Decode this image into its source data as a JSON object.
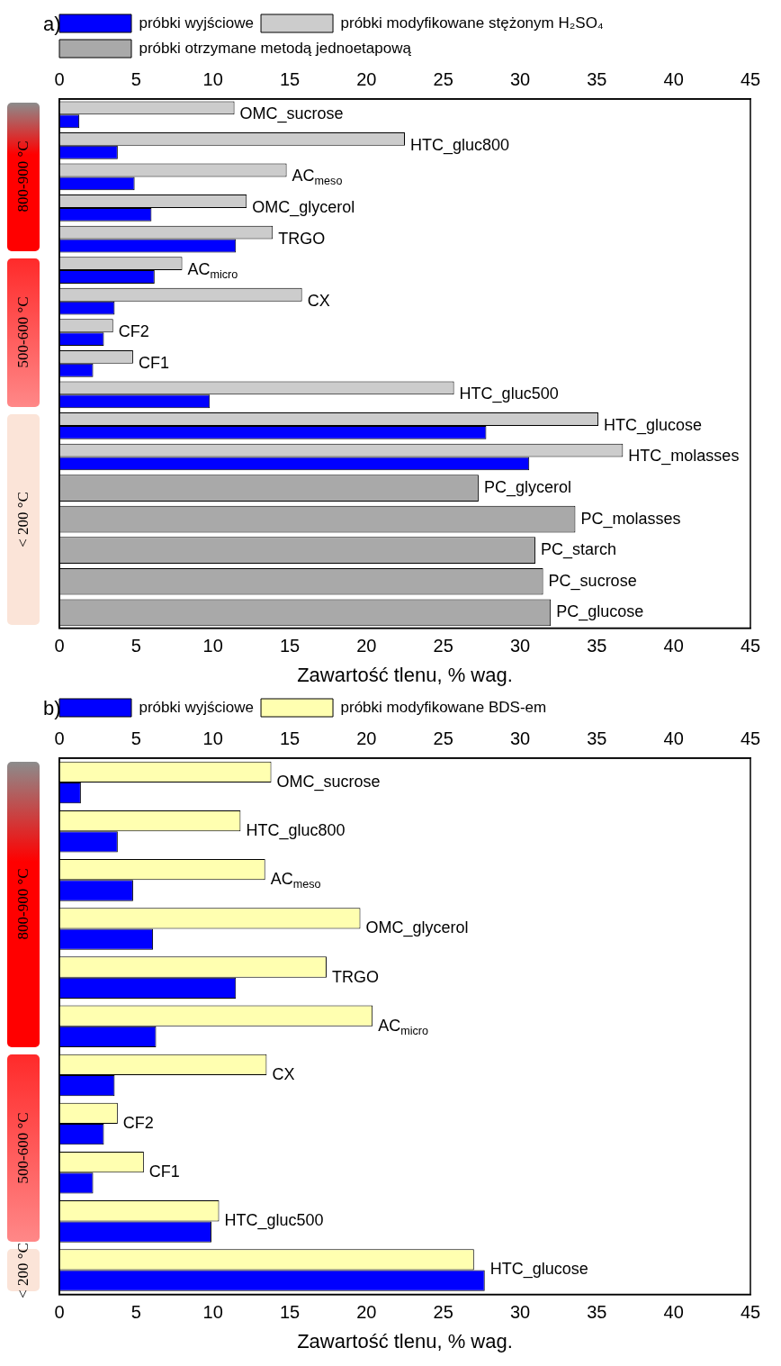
{
  "chart_data": [
    {
      "type": "bar",
      "orientation": "horizontal",
      "xlabel": "Zawartość tlenu, % wag.",
      "legend": "top",
      "tick_labels": "x",
      "annotations": [
        "a)",
        "800-900 °C",
        "500-600 °C",
        "< 200 °C"
      ],
      "categories": [
        "OMC_sucrose",
        "HTC_gluc800",
        "AC$_{meso}$",
        "OMC_glycerol",
        "TRGO",
        "AC$_{micro}$",
        "CX",
        "CF2",
        "CF1",
        "HTC_gluc500",
        "HTC_glucose",
        "HTC_molasses",
        "PC_glycerol",
        "PC_molasses",
        "PC_starch",
        "PC_sucrose",
        "PC_glucose"
      ],
      "series": [
        {
          "name": "próbki wyjściowe",
          "color": "#0000ff",
          "values": [
            1.3,
            3.8,
            4.9,
            6.0,
            11.5,
            6.2,
            3.6,
            2.9,
            2.2,
            9.8,
            27.8,
            30.6,
            null,
            null,
            null,
            null,
            null
          ]
        },
        {
          "name": "próbki modyfikowane stężonym H₂SO₄",
          "color": "#cccccc",
          "values": [
            11.4,
            22.5,
            14.8,
            12.2,
            13.9,
            8.0,
            15.8,
            3.5,
            4.8,
            25.7,
            35.1,
            36.7,
            null,
            null,
            null,
            null,
            null
          ]
        },
        {
          "name": "próbki otrzymane metodą jednoetapową",
          "color": "#a9a9a9",
          "values": [
            null,
            null,
            null,
            null,
            null,
            null,
            null,
            null,
            null,
            null,
            null,
            null,
            27.3,
            33.6,
            31.0,
            31.5,
            32.0
          ]
        }
      ],
      "xlim": [
        0,
        45
      ],
      "xticks": [
        0,
        5,
        10,
        15,
        20,
        25,
        30,
        35,
        40,
        45
      ],
      "x2lim": [
        0,
        45
      ],
      "x2ticks": [
        0,
        5,
        10,
        15,
        20,
        25,
        30,
        35,
        40,
        45
      ]
    },
    {
      "type": "bar",
      "orientation": "horizontal",
      "xlabel": "Zawartość tlenu, % wag.",
      "legend": "top",
      "tick_labels": "x",
      "annotations": [
        "b)",
        "800-900 °C",
        "500-600 °C",
        "< 200 °C"
      ],
      "categories": [
        "OMC_sucrose",
        "HTC_gluc800",
        "AC$_{meso}$",
        "OMC_glycerol",
        "TRGO",
        "AC$_{micro}$",
        "CX",
        "CF2",
        "CF1",
        "HTC_gluc500",
        "HTC_glucose"
      ],
      "series": [
        {
          "name": "próbki wyjściowe",
          "color": "#0000ff",
          "values": [
            1.4,
            3.8,
            4.8,
            6.1,
            11.5,
            6.3,
            3.6,
            2.9,
            2.2,
            9.9,
            27.7
          ]
        },
        {
          "name": "próbki modyfikowane BDS-em",
          "color": "#ffffb0",
          "values": [
            13.8,
            11.8,
            13.4,
            19.6,
            17.4,
            20.4,
            13.5,
            3.8,
            5.5,
            10.4,
            27.0
          ]
        }
      ],
      "xlim": [
        0,
        45
      ],
      "xticks": [
        0,
        5,
        10,
        15,
        20,
        25,
        30,
        35,
        40,
        45
      ],
      "x2lim": [
        0,
        45
      ],
      "x2ticks": [
        0,
        5,
        10,
        15,
        20,
        25,
        30,
        35,
        40,
        45
      ]
    }
  ]
}
